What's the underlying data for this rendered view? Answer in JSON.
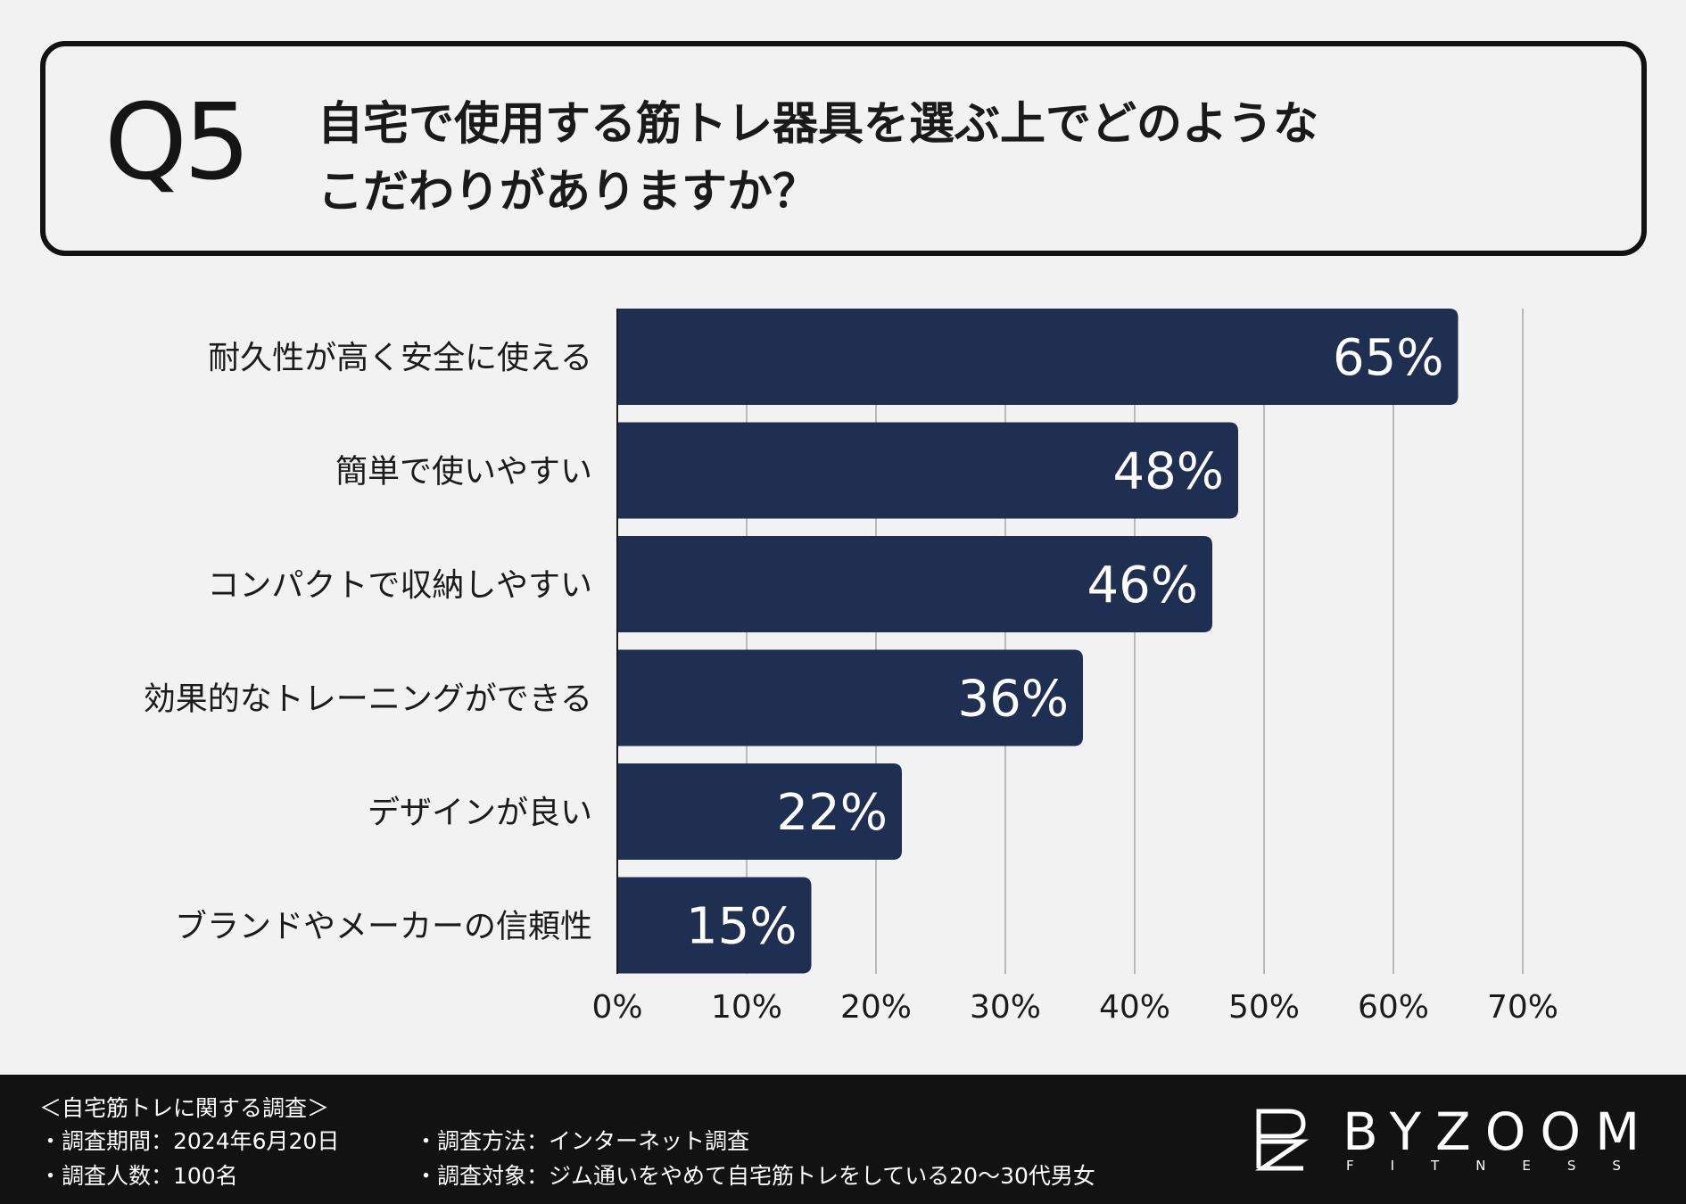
{
  "question": {
    "number": "Q5",
    "line1": "自宅で使用する筋トレ器具を選ぶ上でどのような",
    "line2": "こだわりがありますか？"
  },
  "chart_data": {
    "type": "bar",
    "orientation": "horizontal",
    "title": "自宅で使用する筋トレ器具を選ぶ上でどのようなこだわりがありますか？",
    "categories": [
      "耐久性が高く安全に使える",
      "簡単で使いやすい",
      "コンパクトで収納しやすい",
      "効果的なトレーニングができる",
      "デザインが良い",
      "ブランドやメーカーの信頼性"
    ],
    "values": [
      65,
      48,
      46,
      36,
      22,
      15
    ],
    "value_labels": [
      "65%",
      "48%",
      "46%",
      "36%",
      "22%",
      "15%"
    ],
    "xlim": [
      0,
      70
    ],
    "ticks": [
      0,
      10,
      20,
      30,
      40,
      50,
      60,
      70
    ],
    "tick_labels": [
      "0%",
      "10%",
      "20%",
      "30%",
      "40%",
      "50%",
      "60%",
      "70%"
    ],
    "grid": true,
    "colors": {
      "bar": "#1f2f52",
      "label": "#ffffff",
      "grid": "#b9b9b9",
      "axis": "#1b1b1b"
    }
  },
  "footer": {
    "title": "＜自宅筋トレに関する調査＞",
    "left": [
      "・調査期間：2024年6月20日",
      "・調査人数：100名"
    ],
    "right": [
      "・調査方法：インターネット調査",
      "・調査対象：ジム通いをやめて自宅筋トレをしている20〜30代男女"
    ]
  },
  "logo": {
    "name": "BYZOOM",
    "sub": "FITNESS"
  }
}
